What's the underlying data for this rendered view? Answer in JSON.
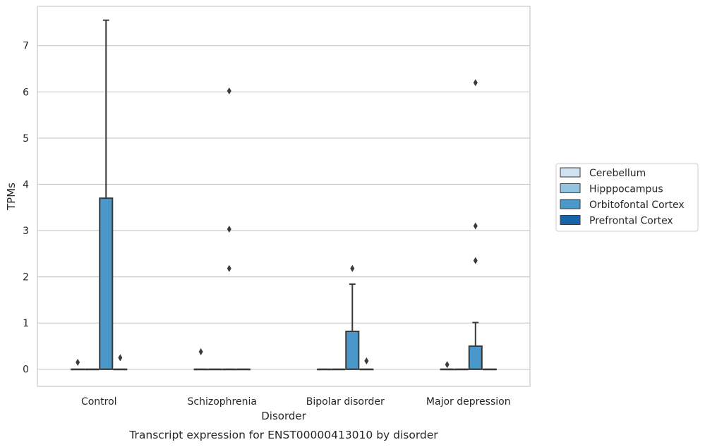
{
  "chart_data": {
    "type": "box",
    "xlabel": "Disorder",
    "ylabel": "TPMs",
    "caption": "Transcript expression for ENST00000413010 by disorder",
    "categories": [
      "Control",
      "Schizophrenia",
      "Bipolar disorder",
      "Major depression"
    ],
    "ylim": [
      -0.37,
      7.85
    ],
    "yticks": [
      0,
      1,
      2,
      3,
      4,
      5,
      6,
      7
    ],
    "grid": "horizontal",
    "legend_position": "right",
    "series": [
      {
        "name": "Cerebellum",
        "color": "#d0e1f2",
        "boxes": [
          {
            "q1": 0,
            "median": 0,
            "q3": 0,
            "whisker_low": 0,
            "whisker_high": 0,
            "outliers": [
              0.15
            ]
          },
          {
            "q1": 0,
            "median": 0,
            "q3": 0,
            "whisker_low": 0,
            "whisker_high": 0,
            "outliers": [
              0.38
            ]
          },
          {
            "q1": 0,
            "median": 0,
            "q3": 0,
            "whisker_low": 0,
            "whisker_high": 0,
            "outliers": []
          },
          {
            "q1": 0,
            "median": 0,
            "q3": 0,
            "whisker_low": 0,
            "whisker_high": 0,
            "outliers": [
              0.1
            ]
          }
        ]
      },
      {
        "name": "Hipppocampus",
        "color": "#94c4df",
        "boxes": [
          {
            "q1": 0,
            "median": 0,
            "q3": 0,
            "whisker_low": 0,
            "whisker_high": 0,
            "outliers": []
          },
          {
            "q1": 0,
            "median": 0,
            "q3": 0,
            "whisker_low": 0,
            "whisker_high": 0,
            "outliers": []
          },
          {
            "q1": 0,
            "median": 0,
            "q3": 0,
            "whisker_low": 0,
            "whisker_high": 0,
            "outliers": []
          },
          {
            "q1": 0,
            "median": 0,
            "q3": 0,
            "whisker_low": 0,
            "whisker_high": 0,
            "outliers": []
          }
        ]
      },
      {
        "name": "Orbitofontal Cortex",
        "color": "#4a98c9",
        "boxes": [
          {
            "q1": 0,
            "median": 0,
            "q3": 3.7,
            "whisker_low": 0,
            "whisker_high": 7.55,
            "outliers": []
          },
          {
            "q1": 0,
            "median": 0,
            "q3": 0,
            "whisker_low": 0,
            "whisker_high": 0,
            "outliers": [
              2.18,
              3.03,
              6.02
            ]
          },
          {
            "q1": 0,
            "median": 0,
            "q3": 0.82,
            "whisker_low": 0,
            "whisker_high": 1.84,
            "outliers": [
              2.18
            ]
          },
          {
            "q1": 0,
            "median": 0,
            "q3": 0.5,
            "whisker_low": 0,
            "whisker_high": 1.01,
            "outliers": [
              2.35,
              3.1,
              6.2
            ]
          }
        ]
      },
      {
        "name": "Prefrontal Cortex",
        "color": "#1764ab",
        "boxes": [
          {
            "q1": 0,
            "median": 0,
            "q3": 0,
            "whisker_low": 0,
            "whisker_high": 0,
            "outliers": [
              0.25
            ]
          },
          {
            "q1": 0,
            "median": 0,
            "q3": 0,
            "whisker_low": 0,
            "whisker_high": 0,
            "outliers": []
          },
          {
            "q1": 0,
            "median": 0,
            "q3": 0,
            "whisker_low": 0,
            "whisker_high": 0,
            "outliers": [
              0.18
            ]
          },
          {
            "q1": 0,
            "median": 0,
            "q3": 0,
            "whisker_low": 0,
            "whisker_high": 0,
            "outliers": []
          }
        ]
      }
    ]
  }
}
